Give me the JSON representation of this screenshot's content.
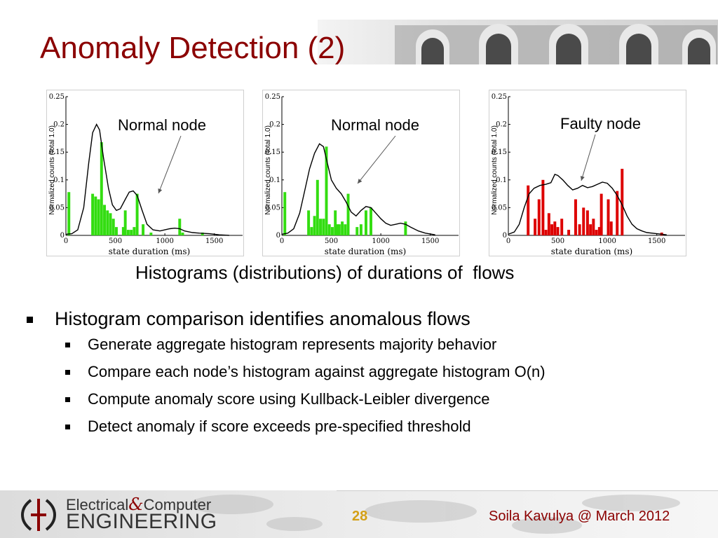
{
  "slide": {
    "title": "Anomaly Detection (2)",
    "caption": "Histograms (distributions) of durations of  flows",
    "bullets": [
      {
        "text": "Histogram comparison identifies anomalous flows",
        "sub": [
          "Generate aggregate histogram represents majority behavior",
          "Compare each node’s histogram against aggregate histogram O(n)",
          "Compute anomaly score using Kullback-Leibler divergence",
          "Detect anomaly if score exceeds pre-specified threshold"
        ]
      }
    ]
  },
  "footer": {
    "logo_line1_a": "Electrical",
    "logo_amp": "&",
    "logo_line1_b": "Computer",
    "logo_line2": "ENGINEERING",
    "page_number": "28",
    "author": "Soila Kavulya @ March 2012"
  },
  "colors": {
    "title": "#8b0000",
    "normal_bars": "#33dd11",
    "faulty_bars": "#dd0000",
    "page_number": "#d4a017"
  },
  "chart_data": [
    {
      "type": "bar",
      "label": "Normal node",
      "xlabel": "state duration (ms)",
      "ylabel": "Normalized counts (total 1.0)",
      "xlim": [
        0,
        1800
      ],
      "ylim": [
        0,
        0.25
      ],
      "xticks": [
        "0",
        "500",
        "1000",
        "1500"
      ],
      "yticks": [
        "0",
        "0.05",
        "0.1",
        "0.15",
        "0.2",
        "0.25"
      ],
      "bar_color": "#33dd11",
      "bars": [
        [
          30,
          0.078
        ],
        [
          270,
          0.075
        ],
        [
          300,
          0.07
        ],
        [
          330,
          0.065
        ],
        [
          360,
          0.168
        ],
        [
          390,
          0.055
        ],
        [
          420,
          0.045
        ],
        [
          450,
          0.04
        ],
        [
          480,
          0.03
        ],
        [
          510,
          0.015
        ],
        [
          580,
          0.015
        ],
        [
          600,
          0.045
        ],
        [
          630,
          0.01
        ],
        [
          660,
          0.01
        ],
        [
          690,
          0.015
        ],
        [
          720,
          0.075
        ],
        [
          780,
          0.02
        ],
        [
          860,
          0.005
        ],
        [
          1150,
          0.03
        ],
        [
          1180,
          0.005
        ],
        [
          1380,
          0.005
        ]
      ],
      "curve": [
        [
          0,
          0.002
        ],
        [
          60,
          0.003
        ],
        [
          120,
          0.01
        ],
        [
          180,
          0.05
        ],
        [
          230,
          0.13
        ],
        [
          270,
          0.185
        ],
        [
          310,
          0.2
        ],
        [
          340,
          0.19
        ],
        [
          380,
          0.14
        ],
        [
          430,
          0.085
        ],
        [
          470,
          0.055
        ],
        [
          510,
          0.045
        ],
        [
          550,
          0.048
        ],
        [
          600,
          0.065
        ],
        [
          640,
          0.078
        ],
        [
          680,
          0.08
        ],
        [
          720,
          0.072
        ],
        [
          770,
          0.045
        ],
        [
          820,
          0.02
        ],
        [
          880,
          0.01
        ],
        [
          950,
          0.008
        ],
        [
          1000,
          0.01
        ],
        [
          1050,
          0.012
        ],
        [
          1100,
          0.013
        ],
        [
          1150,
          0.012
        ],
        [
          1200,
          0.008
        ],
        [
          1280,
          0.005
        ],
        [
          1350,
          0.004
        ],
        [
          1450,
          0.003
        ],
        [
          1550,
          0.001
        ],
        [
          1650,
          0.0
        ]
      ]
    },
    {
      "type": "bar",
      "label": "Normal node",
      "xlabel": "state duration (ms)",
      "ylabel": "Normalized counts (total 1.0)",
      "xlim": [
        0,
        1800
      ],
      "ylim": [
        0,
        0.25
      ],
      "xticks": [
        "0",
        "500",
        "1000",
        "1500"
      ],
      "yticks": [
        "0",
        "0.05",
        "0.1",
        "0.15",
        "0.2",
        "0.25"
      ],
      "bar_color": "#33dd11",
      "bars": [
        [
          30,
          0.078
        ],
        [
          270,
          0.045
        ],
        [
          300,
          0.015
        ],
        [
          330,
          0.035
        ],
        [
          360,
          0.1
        ],
        [
          390,
          0.03
        ],
        [
          420,
          0.03
        ],
        [
          450,
          0.16
        ],
        [
          480,
          0.02
        ],
        [
          510,
          0.015
        ],
        [
          540,
          0.045
        ],
        [
          560,
          0.02
        ],
        [
          580,
          0.02
        ],
        [
          610,
          0.025
        ],
        [
          640,
          0.02
        ],
        [
          670,
          0.075
        ],
        [
          760,
          0.015
        ],
        [
          800,
          0.02
        ],
        [
          850,
          0.045
        ],
        [
          900,
          0.05
        ],
        [
          1250,
          0.025
        ]
      ],
      "curve": [
        [
          0,
          0.002
        ],
        [
          60,
          0.004
        ],
        [
          120,
          0.012
        ],
        [
          180,
          0.04
        ],
        [
          230,
          0.08
        ],
        [
          280,
          0.12
        ],
        [
          330,
          0.148
        ],
        [
          380,
          0.165
        ],
        [
          420,
          0.16
        ],
        [
          460,
          0.13
        ],
        [
          500,
          0.1
        ],
        [
          550,
          0.085
        ],
        [
          600,
          0.075
        ],
        [
          650,
          0.06
        ],
        [
          700,
          0.042
        ],
        [
          750,
          0.035
        ],
        [
          800,
          0.045
        ],
        [
          850,
          0.052
        ],
        [
          900,
          0.05
        ],
        [
          950,
          0.04
        ],
        [
          1000,
          0.03
        ],
        [
          1050,
          0.022
        ],
        [
          1100,
          0.018
        ],
        [
          1150,
          0.02
        ],
        [
          1200,
          0.022
        ],
        [
          1250,
          0.02
        ],
        [
          1300,
          0.015
        ],
        [
          1380,
          0.008
        ],
        [
          1450,
          0.004
        ],
        [
          1550,
          0.001
        ]
      ]
    },
    {
      "type": "bar",
      "label": "Faulty node",
      "xlabel": "state duration (ms)",
      "ylabel": "Normalized counts (total 1.0)",
      "xlim": [
        0,
        1800
      ],
      "ylim": [
        0,
        0.25
      ],
      "xticks": [
        "0",
        "500",
        "1000",
        "1500"
      ],
      "yticks": [
        "0",
        "0.05",
        "0.1",
        "0.15",
        "0.2",
        "0.25"
      ],
      "bar_color": "#dd0000",
      "bars": [
        [
          200,
          0.09
        ],
        [
          270,
          0.03
        ],
        [
          310,
          0.065
        ],
        [
          350,
          0.1
        ],
        [
          380,
          0.01
        ],
        [
          410,
          0.04
        ],
        [
          440,
          0.02
        ],
        [
          470,
          0.025
        ],
        [
          500,
          0.015
        ],
        [
          540,
          0.03
        ],
        [
          610,
          0.01
        ],
        [
          680,
          0.065
        ],
        [
          720,
          0.02
        ],
        [
          760,
          0.05
        ],
        [
          800,
          0.045
        ],
        [
          830,
          0.02
        ],
        [
          860,
          0.03
        ],
        [
          890,
          0.01
        ],
        [
          920,
          0.015
        ],
        [
          940,
          0.075
        ],
        [
          1010,
          0.065
        ],
        [
          1040,
          0.025
        ],
        [
          1100,
          0.08
        ],
        [
          1150,
          0.12
        ],
        [
          1550,
          0.005
        ]
      ],
      "curve": [
        [
          0,
          0.002
        ],
        [
          60,
          0.006
        ],
        [
          110,
          0.02
        ],
        [
          160,
          0.05
        ],
        [
          210,
          0.075
        ],
        [
          260,
          0.085
        ],
        [
          320,
          0.09
        ],
        [
          380,
          0.092
        ],
        [
          430,
          0.095
        ],
        [
          470,
          0.11
        ],
        [
          500,
          0.108
        ],
        [
          550,
          0.1
        ],
        [
          600,
          0.09
        ],
        [
          650,
          0.082
        ],
        [
          700,
          0.085
        ],
        [
          750,
          0.09
        ],
        [
          800,
          0.086
        ],
        [
          850,
          0.088
        ],
        [
          900,
          0.092
        ],
        [
          950,
          0.096
        ],
        [
          1000,
          0.094
        ],
        [
          1050,
          0.085
        ],
        [
          1100,
          0.072
        ],
        [
          1150,
          0.055
        ],
        [
          1200,
          0.035
        ],
        [
          1250,
          0.02
        ],
        [
          1300,
          0.012
        ],
        [
          1350,
          0.008
        ],
        [
          1400,
          0.005
        ],
        [
          1500,
          0.003
        ],
        [
          1600,
          0.001
        ]
      ]
    }
  ]
}
